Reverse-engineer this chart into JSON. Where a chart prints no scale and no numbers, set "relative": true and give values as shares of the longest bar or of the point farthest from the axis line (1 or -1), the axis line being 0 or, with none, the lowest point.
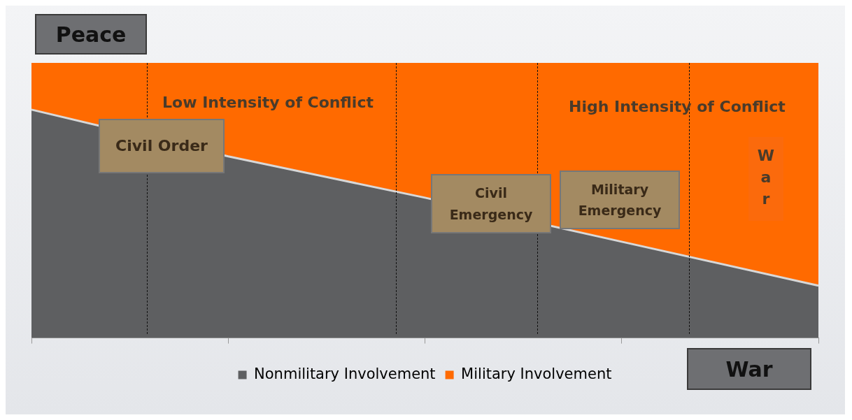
{
  "chart_data": {
    "type": "area",
    "stacked": true,
    "relative": true,
    "categories": [
      null,
      null,
      null,
      null,
      null
    ],
    "series": [
      {
        "name": "Nonmilitary Involvement",
        "color": "#5e5f61",
        "values": [
          0.83,
          0.66,
          0.51,
          0.35,
          0.19
        ]
      },
      {
        "name": "Military Involvement",
        "color": "#ff6a00",
        "values": [
          0.17,
          0.34,
          0.49,
          0.65,
          0.81
        ]
      }
    ],
    "annotations": [
      "Peace",
      "War",
      "Low Intensity of Conflict",
      "High Intensity of Conflict",
      "Civil Order",
      "Civil Emergency",
      "Military Emergency",
      "War"
    ],
    "legend": "bottom",
    "grid": false
  }
}
